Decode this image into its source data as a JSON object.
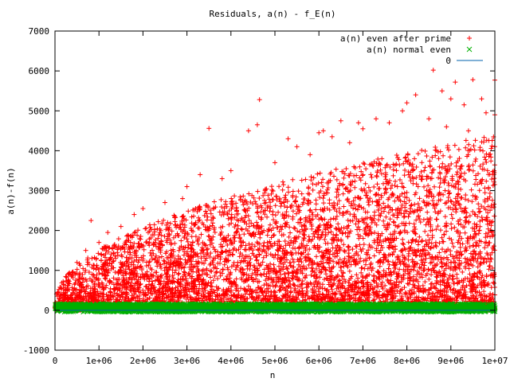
{
  "chart_data": {
    "type": "scatter",
    "title": "Residuals, a(n) - f_E(n)",
    "xlabel": "n",
    "ylabel": "a(n)-f(n)",
    "xlim": [
      0,
      10000000
    ],
    "ylim": [
      -1000,
      7000
    ],
    "x_ticks": [
      0,
      1000000,
      2000000,
      3000000,
      4000000,
      5000000,
      6000000,
      7000000,
      8000000,
      9000000,
      10000000
    ],
    "x_tick_labels": [
      "0",
      "1e+06",
      "2e+06",
      "3e+06",
      "4e+06",
      "5e+06",
      "6e+06",
      "7e+06",
      "8e+06",
      "9e+06",
      "1e+07"
    ],
    "y_ticks": [
      -1000,
      0,
      1000,
      2000,
      3000,
      4000,
      5000,
      6000,
      7000
    ],
    "y_tick_labels": [
      "-1000",
      "0",
      "1000",
      "2000",
      "3000",
      "4000",
      "5000",
      "6000",
      "7000"
    ],
    "grid": false,
    "legend_position": "top-right",
    "series": [
      {
        "name": "a(n) even after prime",
        "marker": "plus",
        "color": "#ff0000",
        "points": [
          [
            100000,
            300
          ],
          [
            200000,
            650
          ],
          [
            300000,
            900
          ],
          [
            500000,
            1200
          ],
          [
            700000,
            1500
          ],
          [
            820000,
            2250
          ],
          [
            1000000,
            1700
          ],
          [
            1200000,
            1950
          ],
          [
            1500000,
            2100
          ],
          [
            1800000,
            2400
          ],
          [
            2000000,
            2550
          ],
          [
            2500000,
            2700
          ],
          [
            2900000,
            2800
          ],
          [
            3000000,
            3100
          ],
          [
            3300000,
            3400
          ],
          [
            3500000,
            4560
          ],
          [
            3800000,
            3300
          ],
          [
            4000000,
            3500
          ],
          [
            4400000,
            4500
          ],
          [
            4600000,
            4650
          ],
          [
            4650000,
            5280
          ],
          [
            5000000,
            3700
          ],
          [
            5300000,
            4300
          ],
          [
            5500000,
            4100
          ],
          [
            5800000,
            3900
          ],
          [
            6000000,
            4450
          ],
          [
            6100000,
            4500
          ],
          [
            6300000,
            4350
          ],
          [
            6500000,
            4750
          ],
          [
            6700000,
            4200
          ],
          [
            6900000,
            4700
          ],
          [
            7000000,
            4550
          ],
          [
            7300000,
            4800
          ],
          [
            7600000,
            4700
          ],
          [
            7900000,
            5000
          ],
          [
            8000000,
            5200
          ],
          [
            8200000,
            5400
          ],
          [
            8500000,
            4800
          ],
          [
            8600000,
            6020
          ],
          [
            8800000,
            5500
          ],
          [
            9000000,
            5300
          ],
          [
            9100000,
            5720
          ],
          [
            9300000,
            5150
          ],
          [
            9500000,
            5780
          ],
          [
            9700000,
            5300
          ],
          [
            9800000,
            4950
          ],
          [
            10000000,
            5770
          ],
          [
            10000000,
            4900
          ],
          [
            9400000,
            4500
          ],
          [
            8900000,
            4600
          ]
        ]
      },
      {
        "name": "a(n) normal even",
        "marker": "cross",
        "color": "#00b000",
        "points": [
          [
            100000,
            30
          ],
          [
            1000000,
            50
          ],
          [
            2000000,
            60
          ],
          [
            3000000,
            50
          ],
          [
            4000000,
            60
          ],
          [
            5000000,
            70
          ],
          [
            6000000,
            60
          ],
          [
            7000000,
            80
          ],
          [
            8000000,
            70
          ],
          [
            9000000,
            80
          ],
          [
            10000000,
            60
          ]
        ]
      },
      {
        "name": "0",
        "marker": "line",
        "color": "#0060ad",
        "y": 0
      }
    ]
  }
}
